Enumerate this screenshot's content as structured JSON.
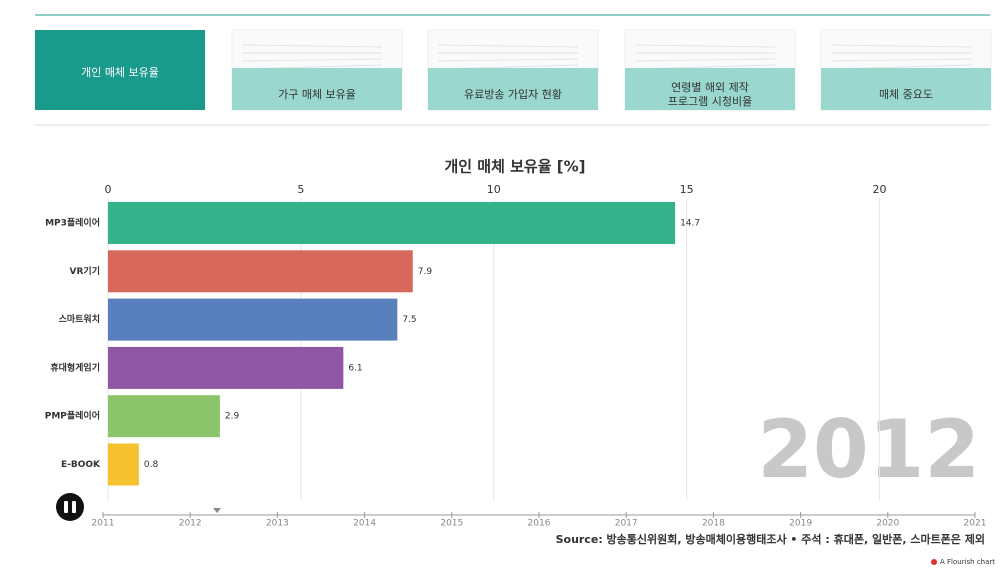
{
  "tabs": [
    {
      "lines": [
        "개인 매체 보유율"
      ],
      "active": true
    },
    {
      "lines": [
        "가구 매체 보유율"
      ],
      "active": false
    },
    {
      "lines": [
        "유료방송 가입자 현황"
      ],
      "active": false
    },
    {
      "lines": [
        "연령별 해외 제작",
        "프로그램 시청비율"
      ],
      "active": false
    },
    {
      "lines": [
        "매체 중요도"
      ],
      "active": false
    }
  ],
  "chart_data": {
    "type": "bar",
    "orientation": "horizontal",
    "title": "개인 매체 보유율 [%]",
    "categories": [
      "MP3플레이어",
      "VR기기",
      "스마트워치",
      "휴대형게임기",
      "PMP플레이어",
      "E-BOOK"
    ],
    "values": [
      14.7,
      7.9,
      7.5,
      6.1,
      2.9,
      0.8
    ],
    "colors": [
      "#34b38b",
      "#d8685a",
      "#5880bd",
      "#8f57a4",
      "#8cc46b",
      "#f4c12f"
    ],
    "xlim": [
      0,
      22.5
    ],
    "xticks": [
      0,
      5,
      10,
      15,
      20
    ],
    "grid": true,
    "year_label": "2012"
  },
  "timeline": {
    "ticks": [
      2011,
      2012,
      2013,
      2014,
      2015,
      2016,
      2017,
      2018,
      2019,
      2020,
      2021
    ]
  },
  "source": "Source: 방송통신위원회, 방송매체이용행태조사 • 주석 : 휴대폰, 일반폰, 스마트폰은 제외",
  "credit": "A Flourish chart"
}
